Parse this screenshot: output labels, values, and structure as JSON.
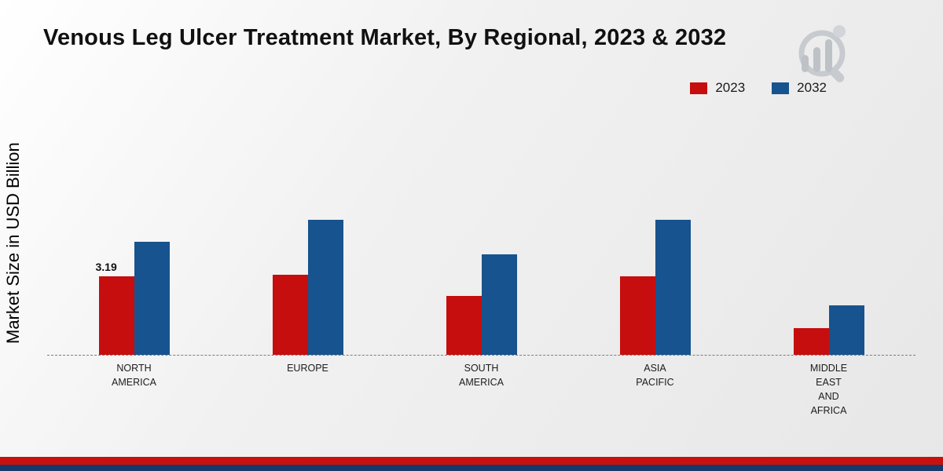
{
  "title": "Venous Leg Ulcer Treatment Market, By Regional, 2023 & 2032",
  "y_axis_label": "Market Size in USD Billion",
  "legend": [
    {
      "label": "2023",
      "color": "#c60e0e"
    },
    {
      "label": "2032",
      "color": "#17538e"
    }
  ],
  "chart_data": {
    "type": "bar",
    "title": "Venous Leg Ulcer Treatment Market, By Regional, 2023 & 2032",
    "ylabel": "Market Size in USD Billion",
    "xlabel": "",
    "ylim": [
      0,
      6
    ],
    "grid": false,
    "baseline_style": "dashed",
    "legend_position": "top-right",
    "categories": [
      "NORTH\nAMERICA",
      "EUROPE",
      "SOUTH\nAMERICA",
      "ASIA\nPACIFIC",
      "MIDDLE\nEAST\nAND\nAFRICA"
    ],
    "series": [
      {
        "name": "2023",
        "color": "#c60e0e",
        "values": [
          3.19,
          3.25,
          2.4,
          3.2,
          1.1
        ]
      },
      {
        "name": "2032",
        "color": "#17538e",
        "values": [
          4.6,
          5.5,
          4.1,
          5.5,
          2.0
        ]
      }
    ],
    "bar_labels": [
      {
        "category_index": 0,
        "series_index": 0,
        "text": "3.19"
      }
    ]
  },
  "footer": {
    "red_band_color": "#c8100f",
    "navy_band_color": "#16396b"
  }
}
